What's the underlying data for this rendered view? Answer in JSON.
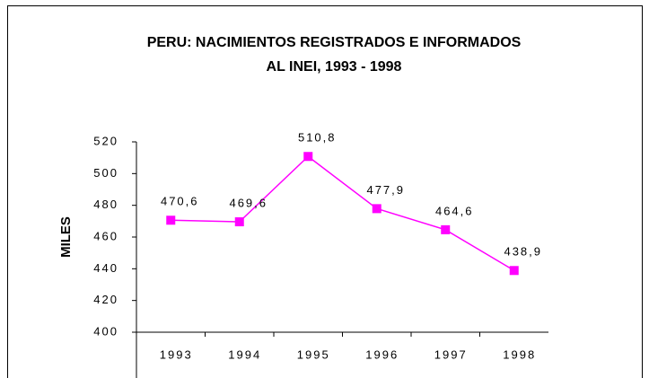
{
  "chart_data": {
    "type": "line",
    "title": [
      "PERU: NACIMIENTOS REGISTRADOS E INFORMADOS",
      "AL INEI, 1993 - 1998"
    ],
    "y_label": "MILES",
    "categories": [
      "1993",
      "1994",
      "1995",
      "1996",
      "1997",
      "1998"
    ],
    "series": [
      {
        "name": "Nacimientos",
        "color": "#ff00ff",
        "values": [
          470.6,
          469.6,
          510.8,
          477.9,
          464.6,
          438.9
        ],
        "value_labels": [
          "470,6",
          "469,6",
          "510,8",
          "477,9",
          "464,6",
          "438,9"
        ]
      }
    ],
    "ylim": [
      400,
      520
    ],
    "yticks": [
      400,
      420,
      440,
      460,
      480,
      500,
      520
    ]
  }
}
